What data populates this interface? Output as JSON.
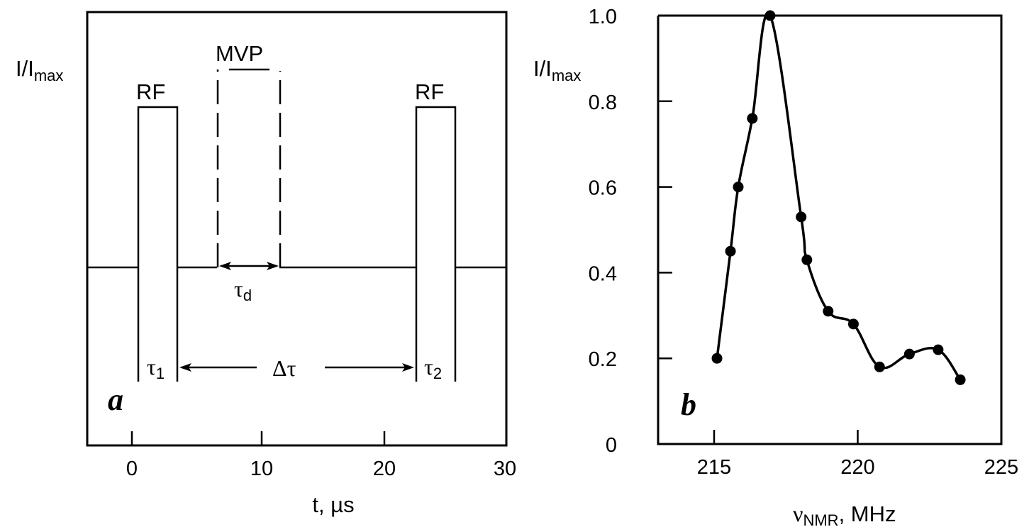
{
  "chart_data": [
    {
      "type": "diagram",
      "panel_label": "a",
      "title": "",
      "xlabel": "t, µs",
      "ylabel": "I/I",
      "ylabel_sub": "max",
      "xlim": [
        -3.5,
        30
      ],
      "xticks": [
        0,
        10,
        20,
        30
      ],
      "xtick_labels": [
        "0",
        "10",
        "20",
        "30"
      ],
      "grid": false,
      "pulses": [
        {
          "label": "RF",
          "start": 0.5,
          "end": 3.5,
          "style": "solid",
          "duration_label": "τ",
          "duration_sub": "1"
        },
        {
          "label": "MVP",
          "start": 6.8,
          "end": 11.8,
          "style": "dashed",
          "delay_label": "τ",
          "delay_sub": "d"
        },
        {
          "label": "RF",
          "start": 22.8,
          "end": 25.8,
          "style": "solid",
          "duration_label": "τ",
          "duration_sub": "2"
        }
      ],
      "annotations": [
        "RF",
        "MVP",
        "RF",
        "τd",
        "τ1",
        "Δτ",
        "τ2"
      ],
      "interval_label": "Δτ"
    },
    {
      "type": "line",
      "panel_label": "b",
      "title": "",
      "xlabel": "ν",
      "xlabel_sub": "NMR",
      "xlabel_unit": ", MHz",
      "ylabel": "I/I",
      "ylabel_sub": "max",
      "xlim": [
        213.05,
        225
      ],
      "ylim": [
        0,
        1.0
      ],
      "xticks": [
        215,
        220,
        225
      ],
      "xtick_labels": [
        "215",
        "220",
        "225"
      ],
      "yticks": [
        0,
        0.2,
        0.4,
        0.6,
        0.8,
        1.0
      ],
      "ytick_labels": [
        "0",
        "0.2",
        "0.4",
        "0.6",
        "0.8",
        "1.0"
      ],
      "grid": false,
      "legend": null,
      "series": [
        {
          "name": "I/Imax",
          "marker": "filled-circle",
          "x": [
            215.1,
            215.57,
            215.84,
            216.33,
            216.95,
            218.03,
            218.23,
            218.97,
            219.85,
            220.76,
            221.8,
            222.8,
            223.57
          ],
          "values": [
            0.2,
            0.45,
            0.6,
            0.76,
            1.0,
            0.53,
            0.43,
            0.31,
            0.28,
            0.18,
            0.21,
            0.22,
            0.15
          ]
        }
      ]
    }
  ]
}
